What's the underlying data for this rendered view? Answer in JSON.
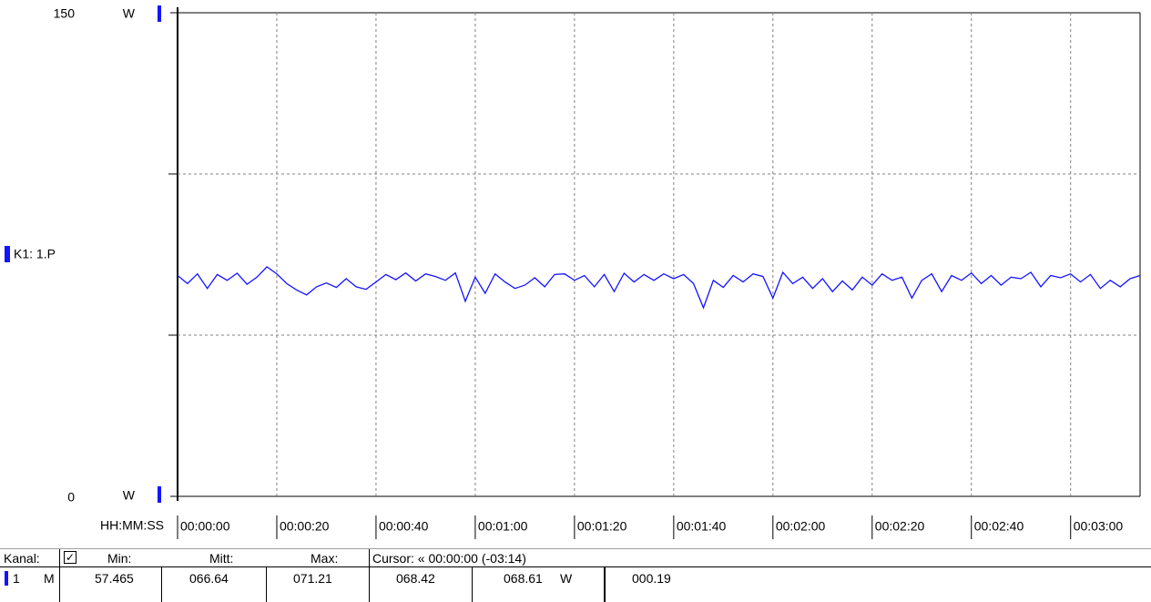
{
  "chart_data": {
    "type": "line",
    "channel_label": "K1: 1.P",
    "y_unit_top": "W",
    "y_unit_bottom": "W",
    "x_label": "HH:MM:SS",
    "color": "#1414ff",
    "xlim": [
      0,
      194
    ],
    "ylim": [
      0,
      150
    ],
    "yticks": [
      0,
      150
    ],
    "ygrid": [
      50,
      100
    ],
    "grid": true,
    "xticks": [
      {
        "value": 0,
        "label": "00:00:00"
      },
      {
        "value": 20,
        "label": "00:00:20"
      },
      {
        "value": 40,
        "label": "00:00:40"
      },
      {
        "value": 60,
        "label": "00:01:00"
      },
      {
        "value": 80,
        "label": "00:01:20"
      },
      {
        "value": 100,
        "label": "00:01:40"
      },
      {
        "value": 120,
        "label": "00:02:00"
      },
      {
        "value": 140,
        "label": "00:02:20"
      },
      {
        "value": 160,
        "label": "00:02:40"
      },
      {
        "value": 180,
        "label": "00:03:00"
      }
    ],
    "x": [
      0,
      2,
      4,
      6,
      8,
      10,
      12,
      14,
      16,
      18,
      20,
      22,
      24,
      26,
      28,
      30,
      32,
      34,
      36,
      38,
      40,
      42,
      44,
      46,
      48,
      50,
      52,
      54,
      56,
      58,
      60,
      62,
      64,
      66,
      68,
      70,
      72,
      74,
      76,
      78,
      80,
      82,
      84,
      86,
      88,
      90,
      92,
      94,
      96,
      98,
      100,
      102,
      104,
      106,
      108,
      110,
      112,
      114,
      116,
      118,
      120,
      122,
      124,
      126,
      128,
      130,
      132,
      134,
      136,
      138,
      140,
      142,
      144,
      146,
      148,
      150,
      152,
      154,
      156,
      158,
      160,
      162,
      164,
      166,
      168,
      170,
      172,
      174,
      176,
      178,
      180,
      182,
      184,
      186,
      188,
      190,
      192,
      194
    ],
    "values": [
      68.5,
      66,
      69,
      64.5,
      68.8,
      67,
      69.2,
      65.8,
      68,
      71.2,
      69,
      66,
      64,
      62.5,
      65,
      66.2,
      64.8,
      67.5,
      65,
      64.2,
      66.5,
      68.8,
      67.2,
      69.3,
      66.8,
      69,
      68.2,
      67,
      69.3,
      60.5,
      68,
      63,
      69,
      66.5,
      64.5,
      65.5,
      67.8,
      65,
      68.8,
      69,
      67,
      68.5,
      65,
      68.8,
      63.5,
      69.2,
      66.5,
      68.8,
      67,
      69,
      67.5,
      68.8,
      66,
      58.5,
      67,
      64.8,
      68.5,
      66.5,
      69,
      68.2,
      61.5,
      69.5,
      66,
      68,
      64.5,
      67.5,
      63.5,
      66.8,
      64,
      68,
      65.5,
      69,
      67,
      68,
      61.5,
      67,
      69,
      63.5,
      68.5,
      67,
      69.3,
      66,
      68.5,
      65.5,
      68,
      67.5,
      69.5,
      65,
      68.5,
      67.8,
      69,
      66.5,
      68.8,
      64.5,
      67,
      65,
      67.5,
      68.5
    ]
  },
  "status_table": {
    "header": {
      "kanal": "Kanal:",
      "min": "Min:",
      "mitt": "Mitt:",
      "max": "Max:",
      "cursor": "Cursor: « 00:00:00 (-03:14)"
    },
    "row": {
      "channel": "1",
      "mode": "M",
      "min": "57.465",
      "mitt": "066.64",
      "max": "071.21",
      "cursor_1": "068.42",
      "cursor_2": "068.61",
      "unit": "W",
      "diff": "000.19"
    }
  }
}
